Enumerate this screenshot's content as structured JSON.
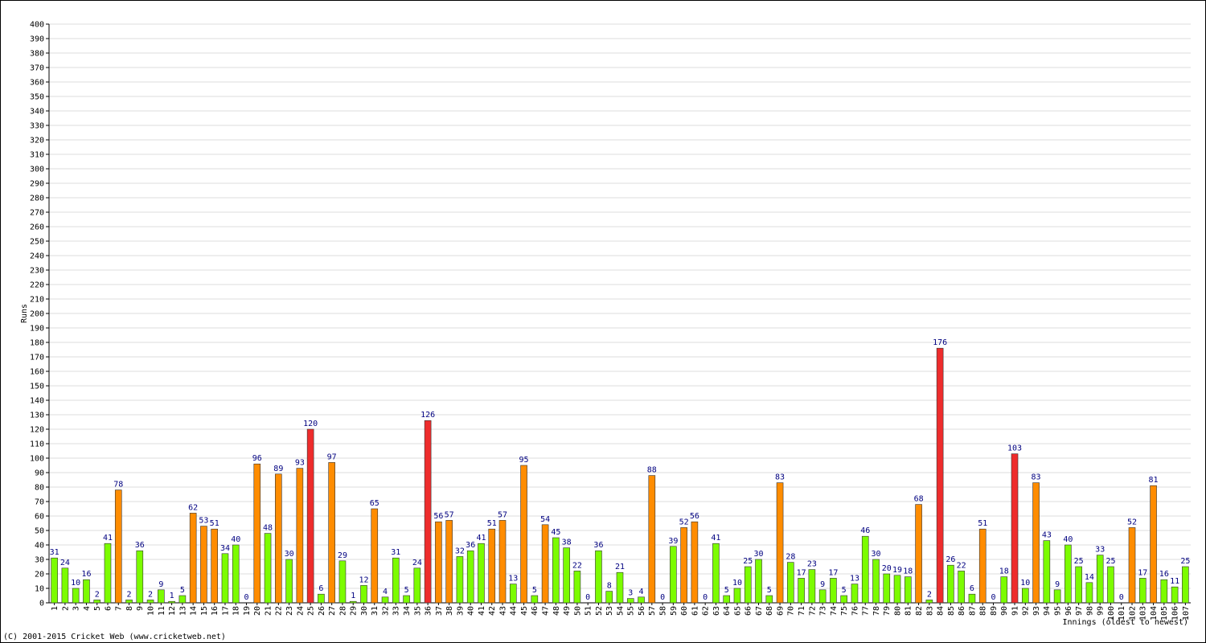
{
  "chart_data": {
    "type": "bar",
    "y_label": "Runs",
    "x_label": "Innings (oldest to newest)",
    "footer": "(C) 2001-2015 Cricket Web (www.cricketweb.net)",
    "categories": [
      "1",
      "2",
      "3",
      "4",
      "5",
      "6",
      "7",
      "8",
      "9",
      "10",
      "11",
      "12",
      "13",
      "14",
      "15",
      "16",
      "17",
      "18",
      "19",
      "20",
      "21",
      "22",
      "23",
      "24",
      "25",
      "26",
      "27",
      "28",
      "29",
      "30",
      "31",
      "32",
      "33",
      "34",
      "35",
      "36",
      "37",
      "38",
      "39",
      "40",
      "41",
      "42",
      "43",
      "44",
      "45",
      "46",
      "47",
      "48",
      "49",
      "50",
      "51",
      "52",
      "53",
      "54",
      "55",
      "56",
      "57",
      "58",
      "59",
      "60",
      "61",
      "62",
      "63",
      "64",
      "65",
      "66",
      "67",
      "68",
      "69",
      "70",
      "71",
      "72",
      "73",
      "74",
      "75",
      "76",
      "77",
      "78",
      "79",
      "80",
      "81",
      "82",
      "83",
      "84",
      "85",
      "86",
      "87",
      "88",
      "89",
      "90",
      "91",
      "92",
      "93",
      "94",
      "95",
      "96",
      "97",
      "98",
      "99",
      "100",
      "101",
      "102",
      "103",
      "104",
      "105",
      "106",
      "107"
    ],
    "values": [
      31,
      24,
      10,
      16,
      2,
      41,
      78,
      2,
      36,
      2,
      9,
      1,
      5,
      62,
      53,
      51,
      34,
      40,
      0,
      96,
      48,
      89,
      30,
      93,
      120,
      6,
      97,
      29,
      1,
      12,
      65,
      4,
      31,
      5,
      24,
      126,
      56,
      57,
      32,
      36,
      41,
      51,
      57,
      13,
      95,
      5,
      54,
      45,
      38,
      22,
      0,
      36,
      8,
      21,
      3,
      4,
      88,
      0,
      39,
      52,
      56,
      0,
      41,
      5,
      10,
      25,
      30,
      5,
      83,
      28,
      17,
      23,
      9,
      17,
      5,
      13,
      46,
      30,
      20,
      19,
      18,
      68,
      2,
      176,
      26,
      22,
      6,
      51,
      0,
      18,
      103,
      10,
      83,
      43,
      9,
      40,
      25,
      14,
      33,
      25,
      0,
      52,
      17,
      81,
      16,
      11,
      25
    ],
    "colors": [
      "#7cfc00",
      "#7cfc00",
      "#7cfc00",
      "#7cfc00",
      "#7cfc00",
      "#7cfc00",
      "#ff8c00",
      "#7cfc00",
      "#7cfc00",
      "#7cfc00",
      "#7cfc00",
      "#7cfc00",
      "#7cfc00",
      "#ff8c00",
      "#ff8c00",
      "#ff8c00",
      "#7cfc00",
      "#7cfc00",
      "#7cfc00",
      "#ff8c00",
      "#7cfc00",
      "#ff8c00",
      "#7cfc00",
      "#ff8c00",
      "#ee2c2c",
      "#7cfc00",
      "#ff8c00",
      "#7cfc00",
      "#7cfc00",
      "#7cfc00",
      "#ff8c00",
      "#7cfc00",
      "#7cfc00",
      "#7cfc00",
      "#7cfc00",
      "#ee2c2c",
      "#ff8c00",
      "#ff8c00",
      "#7cfc00",
      "#7cfc00",
      "#7cfc00",
      "#ff8c00",
      "#ff8c00",
      "#7cfc00",
      "#ff8c00",
      "#7cfc00",
      "#ff8c00",
      "#7cfc00",
      "#7cfc00",
      "#7cfc00",
      "#7cfc00",
      "#7cfc00",
      "#7cfc00",
      "#7cfc00",
      "#7cfc00",
      "#7cfc00",
      "#ff8c00",
      "#7cfc00",
      "#7cfc00",
      "#ff8c00",
      "#ff8c00",
      "#7cfc00",
      "#7cfc00",
      "#7cfc00",
      "#7cfc00",
      "#7cfc00",
      "#7cfc00",
      "#7cfc00",
      "#ff8c00",
      "#7cfc00",
      "#7cfc00",
      "#7cfc00",
      "#7cfc00",
      "#7cfc00",
      "#7cfc00",
      "#7cfc00",
      "#7cfc00",
      "#7cfc00",
      "#7cfc00",
      "#7cfc00",
      "#7cfc00",
      "#ff8c00",
      "#7cfc00",
      "#ee2c2c",
      "#7cfc00",
      "#7cfc00",
      "#7cfc00",
      "#ff8c00",
      "#7cfc00",
      "#7cfc00",
      "#ee2c2c",
      "#7cfc00",
      "#ff8c00",
      "#7cfc00",
      "#7cfc00",
      "#7cfc00",
      "#7cfc00",
      "#7cfc00",
      "#7cfc00",
      "#7cfc00",
      "#7cfc00",
      "#ff8c00",
      "#7cfc00",
      "#ff8c00",
      "#7cfc00",
      "#7cfc00",
      "#7cfc00"
    ],
    "label_color": "#000080",
    "ylim": [
      0,
      400
    ],
    "yticks": [
      0,
      10,
      20,
      30,
      40,
      50,
      60,
      70,
      80,
      90,
      100,
      110,
      120,
      130,
      140,
      150,
      160,
      170,
      180,
      190,
      200,
      210,
      220,
      230,
      240,
      250,
      260,
      270,
      280,
      290,
      300,
      310,
      320,
      330,
      340,
      350,
      360,
      370,
      380,
      390,
      400
    ],
    "grid": true
  }
}
